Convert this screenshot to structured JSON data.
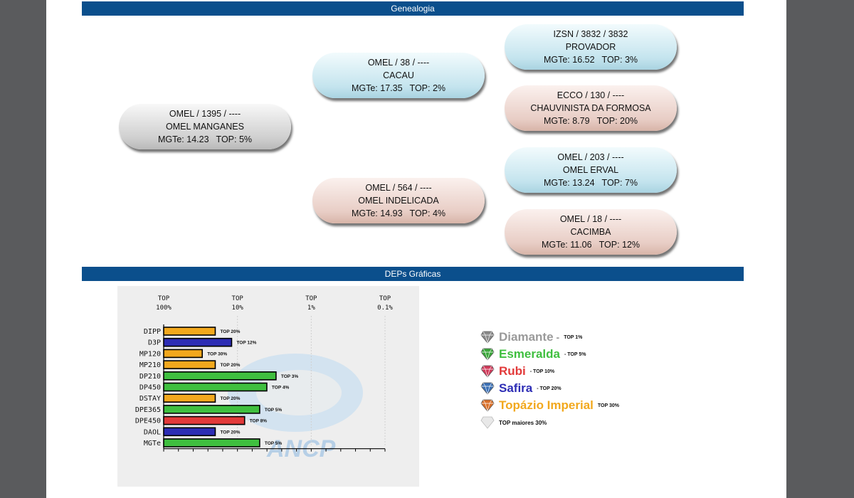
{
  "sections": {
    "genealogy_title": "Genealogia",
    "deps_title": "DEPs Gráficas"
  },
  "genealogy": {
    "animal": {
      "line1": "OMEL / 1395 / ----",
      "name": "OMEL MANGANES",
      "mgte": "MGTe: 14.23",
      "top": "TOP: 5%"
    },
    "sire": {
      "line1": "OMEL / 38 / ----",
      "name": "CACAU",
      "mgte": "MGTe: 17.35",
      "top": "TOP: 2%"
    },
    "dam": {
      "line1": "OMEL / 564 / ----",
      "name": "OMEL INDELICADA",
      "mgte": "MGTe: 14.93",
      "top": "TOP: 4%"
    },
    "sire_sire": {
      "line1": "IZSN / 3832 / 3832",
      "name": "PROVADOR",
      "mgte": "MGTe: 16.52",
      "top": "TOP: 3%"
    },
    "sire_dam": {
      "line1": "ECCO / 130 / ----",
      "name": "CHAUVINISTA DA FORMOSA",
      "mgte": "MGTe: 8.79",
      "top": "TOP: 20%"
    },
    "dam_sire": {
      "line1": "OMEL / 203 / ----",
      "name": "OMEL ERVAL",
      "mgte": "MGTe: 13.24",
      "top": "TOP: 7%"
    },
    "dam_dam": {
      "line1": "OMEL / 18 / ----",
      "name": "CACIMBA",
      "mgte": "MGTe: 11.06",
      "top": "TOP: 12%"
    }
  },
  "colors": {
    "header_bar": "#0b4f8c",
    "diamante": "#9a9a9a",
    "esmeralda": "#3fbf3f",
    "rubi": "#e23a3a",
    "safira": "#2d2db5",
    "topazio": "#f2a81d"
  },
  "chart_data": {
    "type": "bar",
    "orientation": "horizontal",
    "x_tick_labels": [
      {
        "line1": "TOP",
        "line2": "100%"
      },
      {
        "line1": "TOP",
        "line2": "10%"
      },
      {
        "line1": "TOP",
        "line2": "1%"
      },
      {
        "line1": "TOP",
        "line2": "0.1%"
      }
    ],
    "x_axis_values": [
      100,
      10,
      1,
      0.1
    ],
    "x_scale": "log-reversed",
    "categories": [
      "DIPP",
      "D3P",
      "MP120",
      "MP210",
      "DP210",
      "DP450",
      "DSTAY",
      "DPE365",
      "DPE450",
      "DAOL",
      "MGTe"
    ],
    "values": [
      20,
      12,
      30,
      20,
      3,
      4,
      20,
      5,
      8,
      20,
      5
    ],
    "labels": [
      "TOP 20%",
      "TOP 12%",
      "TOP 30%",
      "TOP 20%",
      "TOP 3%",
      "TOP 4%",
      "TOP 20%",
      "TOP 5%",
      "TOP 8%",
      "TOP 20%",
      "TOP 5%"
    ],
    "bar_classes": [
      "topazio",
      "safira",
      "topazio",
      "topazio",
      "esmeralda",
      "esmeralda",
      "topazio",
      "esmeralda",
      "rubi",
      "safira",
      "esmeralda"
    ],
    "watermark": "ANCP"
  },
  "legend": [
    {
      "name": "Diamante",
      "sep": " -",
      "top": "TOP 1%",
      "cls": "diamante",
      "color": "#9a9a9a",
      "gem": "#8a8a8a"
    },
    {
      "name": "Esmeralda",
      "sep": "",
      "top": "- TOP 5%",
      "cls": "esmeralda",
      "color": "#3fbf3f",
      "gem": "#3aa63a"
    },
    {
      "name": "Rubi",
      "sep": "",
      "top": "- TOP 10%",
      "cls": "rubi",
      "color": "#e23a3a",
      "gem": "#d03a5a"
    },
    {
      "name": "Safira",
      "sep": "",
      "top": "- TOP 20%",
      "cls": "safira",
      "color": "#2d2db5",
      "gem": "#3a6fb5"
    },
    {
      "name": "Topázio Imperial",
      "sep": "",
      "top": "TOP 30%",
      "cls": "topazio",
      "color": "#f2a81d",
      "gem": "#d9702a"
    }
  ],
  "legend_extra": "TOP maiores 30%"
}
